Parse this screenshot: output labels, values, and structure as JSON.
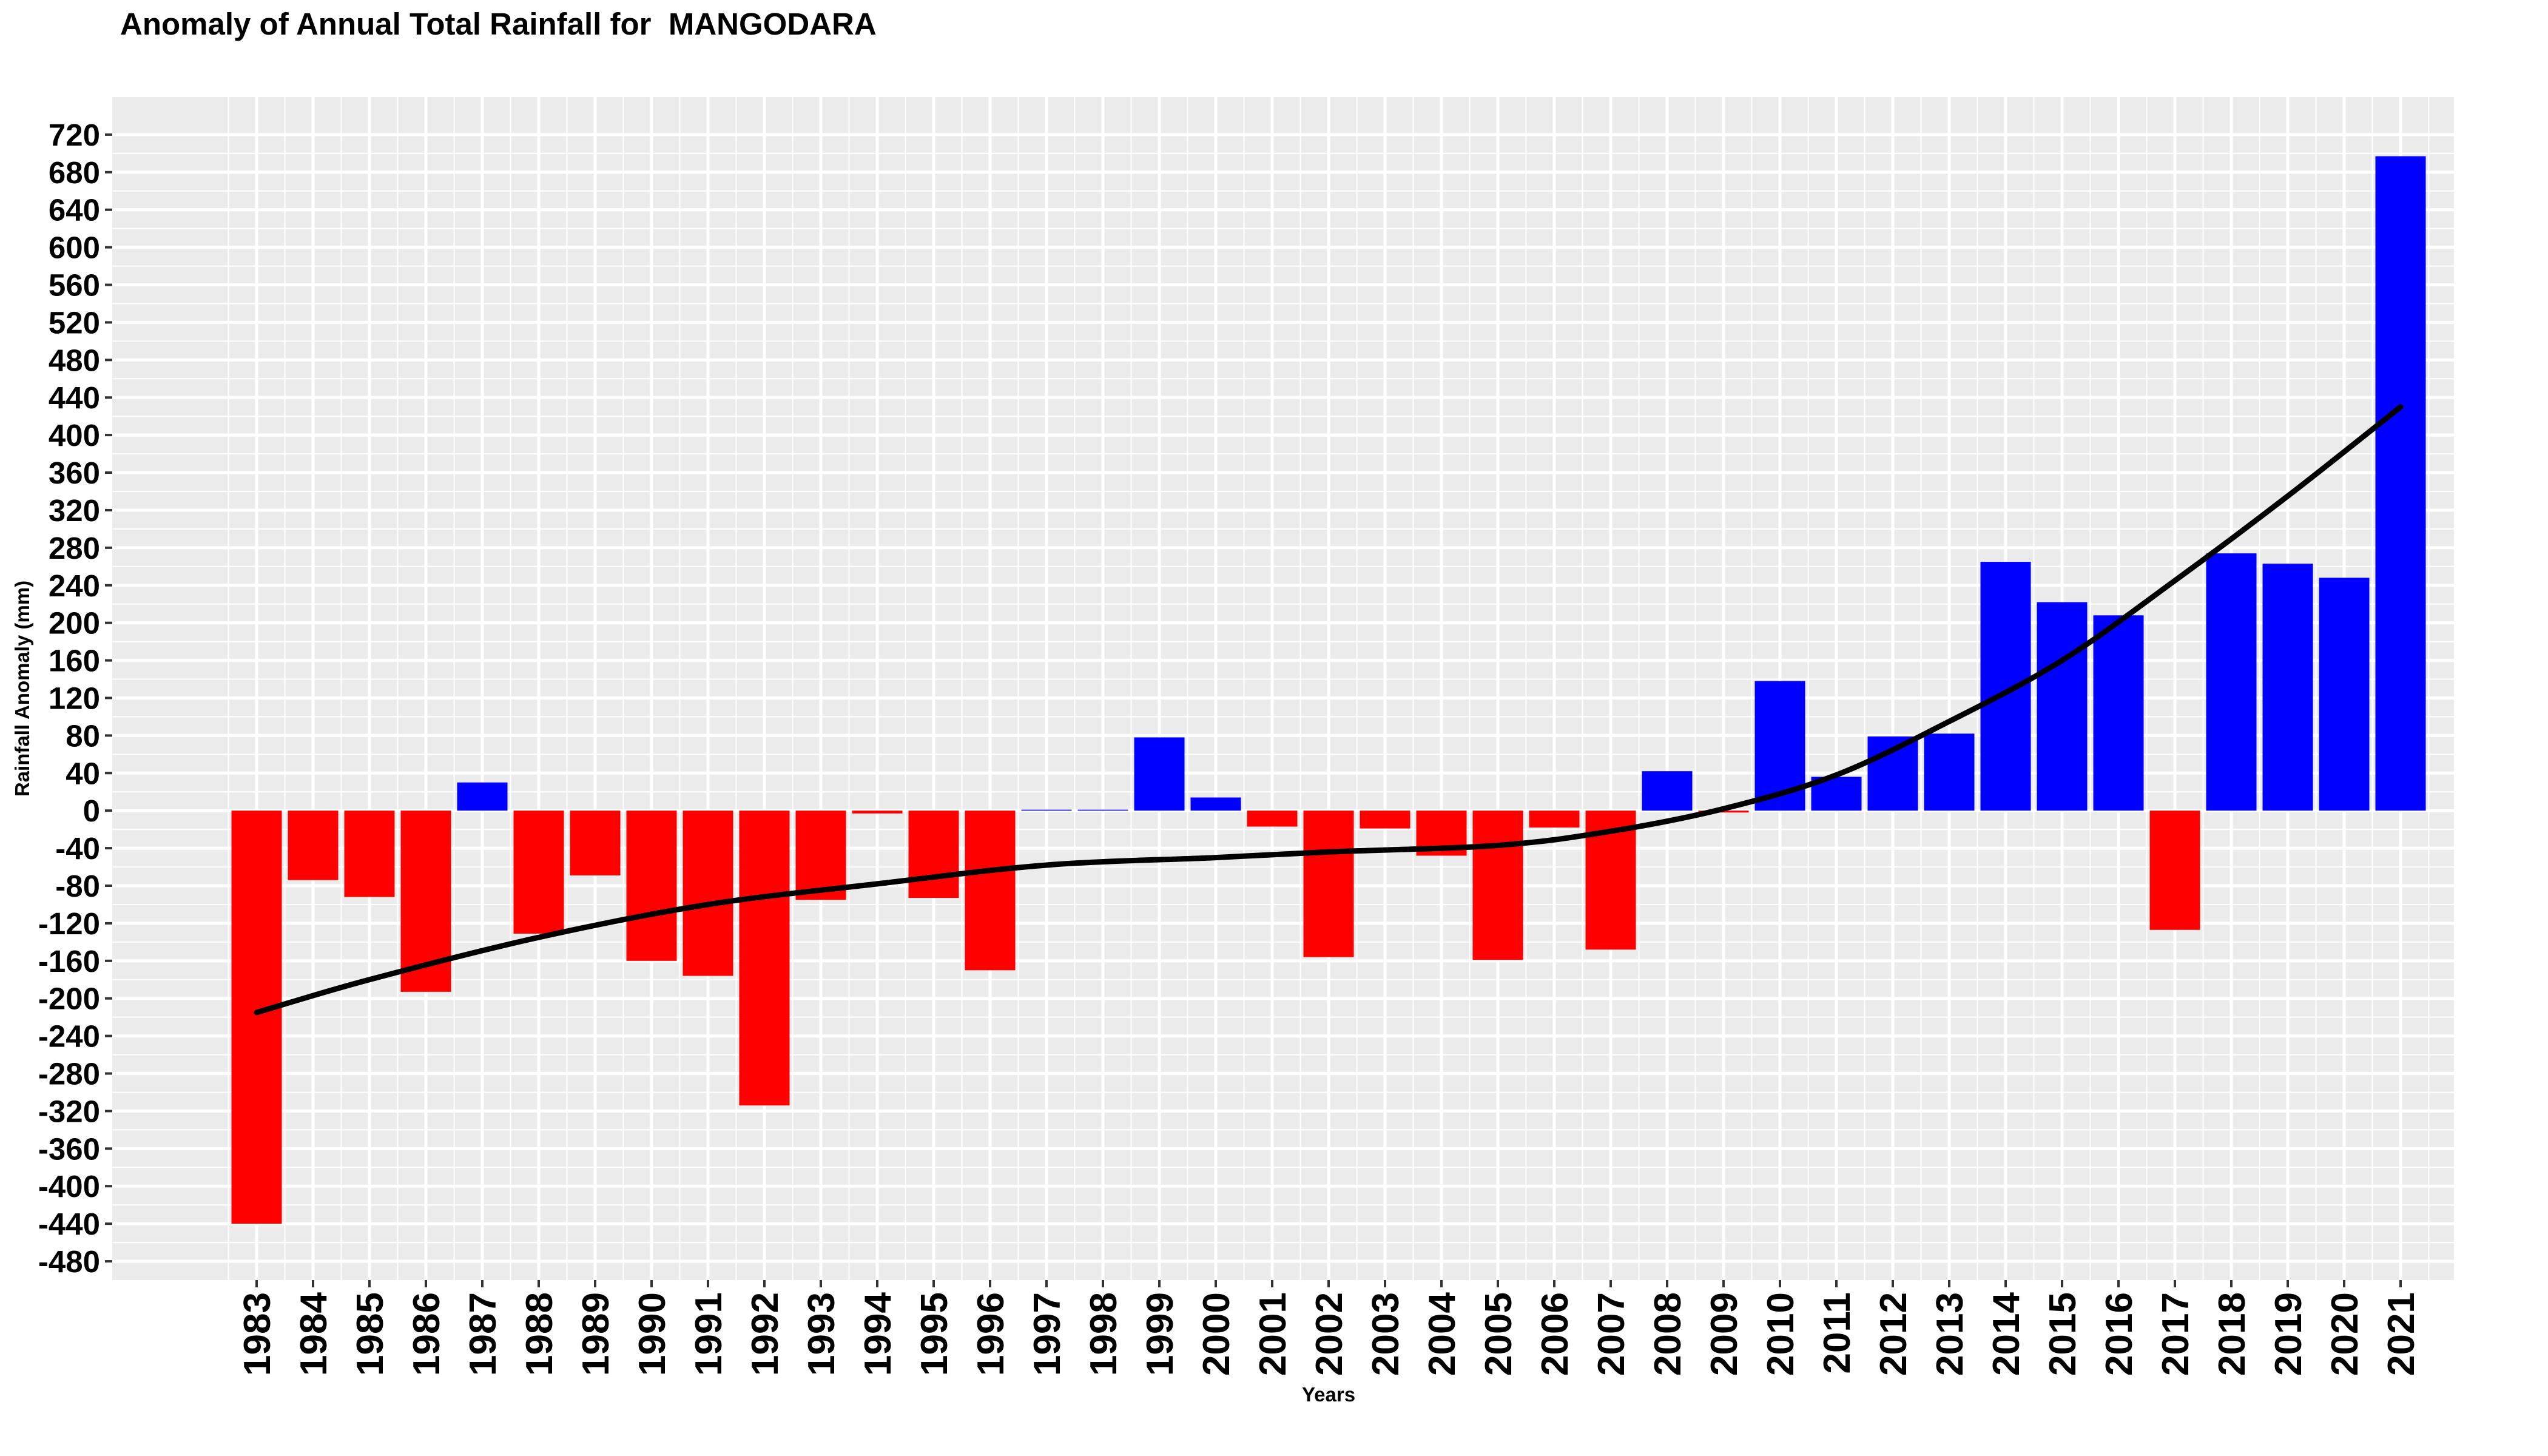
{
  "chart_data": {
    "type": "bar",
    "title": "Anomaly of Annual Total Rainfall for  MANGODARA",
    "xlabel": "Years",
    "ylabel": "Rainfall Anomaly (mm)",
    "ylim": [
      -480,
      720
    ],
    "y_ticks": [
      720,
      680,
      640,
      600,
      560,
      520,
      480,
      440,
      400,
      360,
      320,
      280,
      240,
      200,
      160,
      120,
      80,
      40,
      0,
      -40,
      -80,
      -120,
      -160,
      -200,
      -240,
      -280,
      -320,
      -360,
      -400,
      -440,
      -480
    ],
    "grid": true,
    "legend": "none",
    "colors": {
      "positive": "#0000ff",
      "negative": "#ff0000",
      "trend": "#000000",
      "panel": "#ebebeb",
      "grid": "#ffffff"
    },
    "categories": [
      "1983",
      "1984",
      "1985",
      "1986",
      "1987",
      "1988",
      "1989",
      "1990",
      "1991",
      "1992",
      "1993",
      "1994",
      "1995",
      "1996",
      "1997",
      "1998",
      "1999",
      "2000",
      "2001",
      "2002",
      "2003",
      "2004",
      "2005",
      "2006",
      "2007",
      "2008",
      "2009",
      "2010",
      "2011",
      "2012",
      "2013",
      "2014",
      "2015",
      "2016",
      "2017",
      "2018",
      "2019",
      "2020",
      "2021"
    ],
    "values": [
      -440,
      -74,
      -92,
      -193,
      30,
      -131,
      -69,
      -160,
      -176,
      -314,
      -95,
      -3,
      -93,
      -170,
      1,
      1,
      78,
      14,
      -17,
      -156,
      -19,
      -48,
      -159,
      -18,
      -148,
      42,
      -2,
      138,
      36,
      79,
      82,
      265,
      222,
      208,
      -127,
      274,
      263,
      248,
      697
    ],
    "trend_line": {
      "type": "smooth",
      "x": [
        "1983",
        "1985",
        "1988",
        "1991",
        "1994",
        "1997",
        "2000",
        "2002",
        "2005",
        "2007",
        "2009",
        "2011",
        "2013",
        "2015",
        "2017",
        "2019",
        "2021"
      ],
      "y": [
        -215,
        -180,
        -135,
        -100,
        -78,
        -58,
        -50,
        -44,
        -37,
        -22,
        2,
        38,
        95,
        160,
        245,
        335,
        430
      ]
    }
  }
}
